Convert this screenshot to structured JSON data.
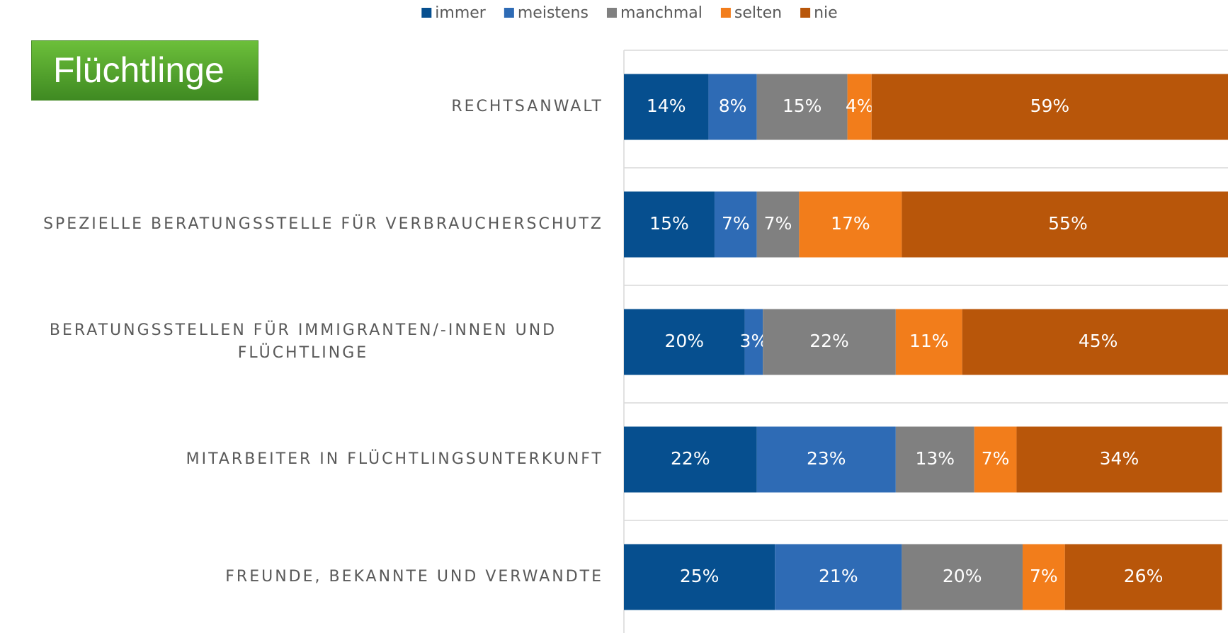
{
  "chart_data": {
    "type": "stacked_bar_horizontal",
    "title": "Flüchtlinge",
    "categories": [
      "RECHTSANWALT",
      "SPEZIELLE BERATUNGSSTELLE FÜR VERBRAUCHERSCHUTZ",
      "BERATUNGSSTELLEN FÜR IMMIGRANTEN/-INNEN UND FLÜCHTLINGE",
      "MITARBEITER IN FLÜCHTLINGSUNTERKUNFT",
      "FREUNDE, BEKANNTE UND VERWANDTE"
    ],
    "xlim": [
      0,
      100
    ],
    "legend": "top",
    "series": [
      {
        "name": "immer",
        "color": "#064f8f",
        "values": [
          14,
          15,
          20,
          22,
          25
        ],
        "value_labels": [
          "14%",
          "15%",
          "20%",
          "22%",
          "25%"
        ]
      },
      {
        "name": "meistens",
        "color": "#2e6bb5",
        "values": [
          8,
          7,
          3,
          23,
          21
        ],
        "value_labels": [
          "8%",
          "7%",
          "3%",
          "23%",
          "21%"
        ]
      },
      {
        "name": "manchmal",
        "color": "#808080",
        "values": [
          15,
          7,
          22,
          13,
          20
        ],
        "value_labels": [
          "15%",
          "7%",
          "22%",
          "13%",
          "20%"
        ]
      },
      {
        "name": "selten",
        "color": "#f27d1b",
        "values": [
          4,
          17,
          11,
          7,
          7
        ],
        "value_labels": [
          "4%",
          "17%",
          "11%",
          "7%",
          "7%"
        ]
      },
      {
        "name": "nie",
        "color": "#b8560a",
        "values": [
          59,
          55,
          45,
          34,
          26
        ],
        "value_labels": [
          "59%",
          "55%",
          "45%",
          "34%",
          "26%"
        ]
      }
    ]
  }
}
